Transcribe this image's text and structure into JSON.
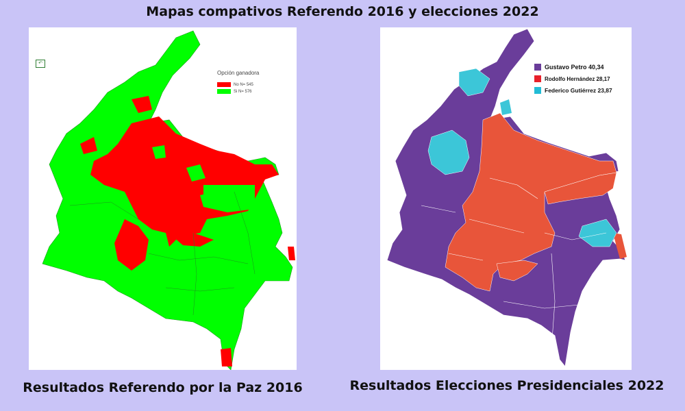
{
  "header": {
    "title": "Mapas compativos Referendo 2016 y elecciones 2022"
  },
  "left_map": {
    "caption": "Resultados Referendo por la Paz 2016",
    "legend": {
      "title": "Opción ganadora",
      "items": [
        {
          "label": "No N= 545",
          "color": "#ff0000"
        },
        {
          "label": "Si N= 576",
          "color": "#00ff00"
        }
      ]
    }
  },
  "right_map": {
    "caption": "Resultados Elecciones Presidenciales 2022",
    "legend": {
      "items": [
        {
          "label": "Gustavo Petro 40,34",
          "color": "#6a3d9a"
        },
        {
          "label": "Rodolfo Hernández 28,17",
          "color": "#e8202a"
        },
        {
          "label": "Federico Gutiérrez 23,87",
          "color": "#22bcd6"
        }
      ]
    }
  },
  "colors": {
    "background": "#c9c4f7",
    "referendo_si": "#00ff00",
    "referendo_no": "#ff0000",
    "petro": "#6a3d9a",
    "hernandez": "#e8553a",
    "gutierrez": "#3cc6d8"
  }
}
